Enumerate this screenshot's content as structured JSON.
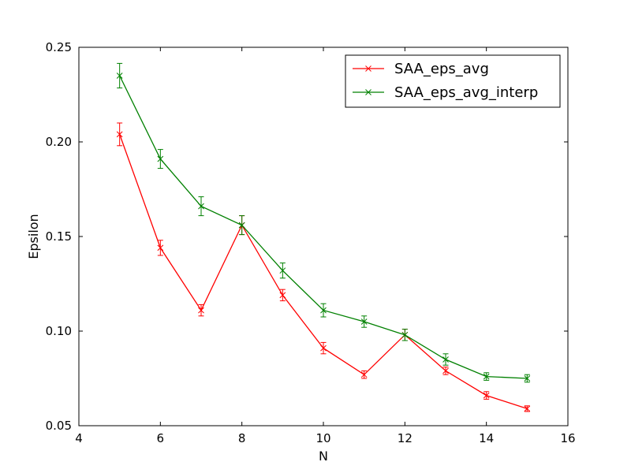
{
  "chart_data": {
    "type": "line",
    "xlabel": "N",
    "ylabel": "Epsilon",
    "xlim": [
      4,
      16
    ],
    "ylim": [
      0.05,
      0.25
    ],
    "xticks": [
      "4",
      "6",
      "8",
      "10",
      "12",
      "14",
      "16"
    ],
    "yticks": [
      "0.05",
      "0.10",
      "0.15",
      "0.20",
      "0.25"
    ],
    "legend_position": "top-right",
    "grid": false,
    "marker": "x",
    "error_bars": true,
    "x": [
      5,
      6,
      7,
      8,
      9,
      10,
      11,
      12,
      13,
      14,
      15
    ],
    "series": [
      {
        "name": "SAA_eps_avg",
        "color": "#ff0000",
        "values": [
          0.204,
          0.144,
          0.111,
          0.156,
          0.119,
          0.091,
          0.077,
          0.098,
          0.079,
          0.066,
          0.059
        ],
        "errors": [
          0.006,
          0.004,
          0.003,
          0.005,
          0.003,
          0.003,
          0.002,
          0.003,
          0.002,
          0.002,
          0.0015
        ]
      },
      {
        "name": "SAA_eps_avg_interp",
        "color": "#008000",
        "values": [
          0.235,
          0.191,
          0.166,
          0.156,
          0.132,
          0.111,
          0.105,
          0.098,
          0.085,
          0.076,
          0.075
        ],
        "errors": [
          0.0065,
          0.005,
          0.005,
          0.005,
          0.004,
          0.0035,
          0.003,
          0.003,
          0.003,
          0.002,
          0.002
        ]
      }
    ]
  }
}
